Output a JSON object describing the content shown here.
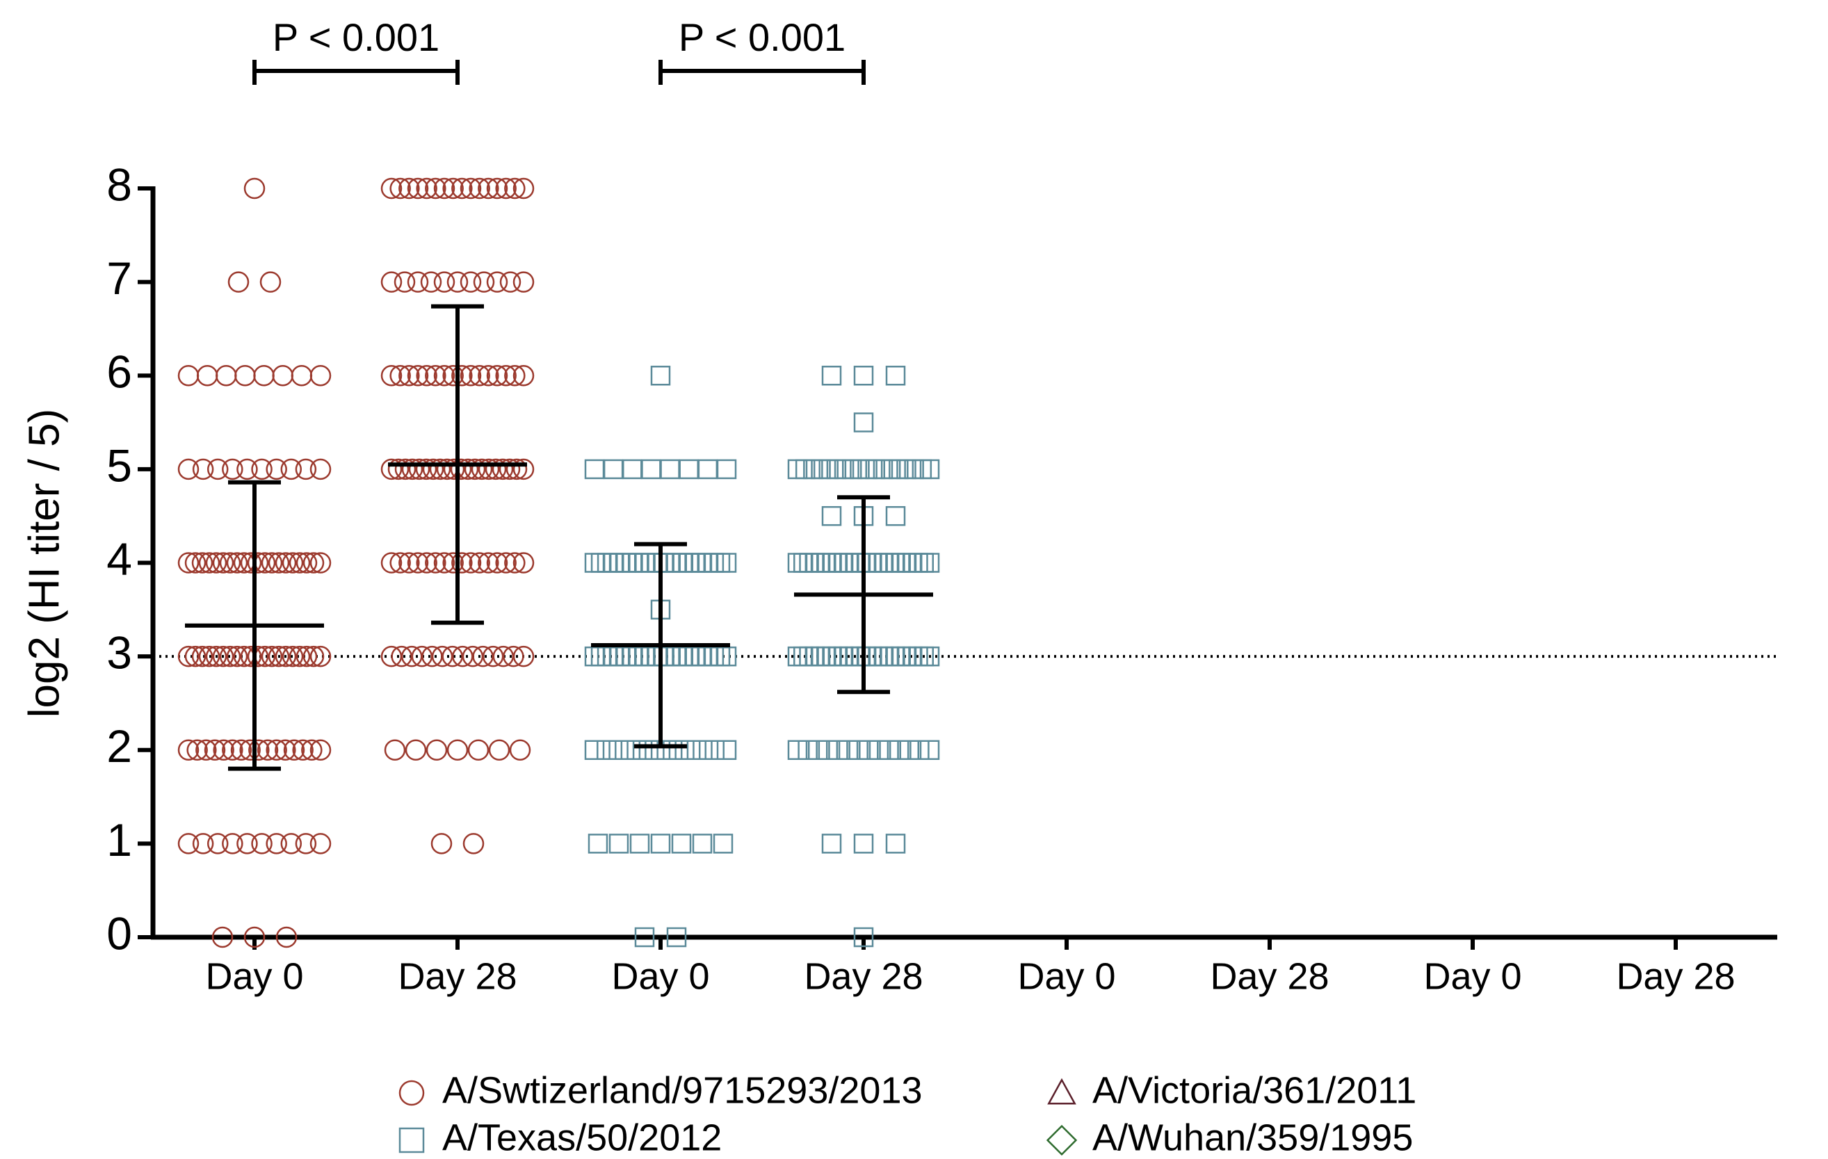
{
  "chart_data": {
    "type": "dot-plot",
    "y_label": "log2 (HI titer / 5)",
    "categories": [
      "Day 0",
      "Day 28",
      "Day 0",
      "Day 28",
      "Day 0",
      "Day 28",
      "Day 0",
      "Day 28"
    ],
    "ylim": [
      0,
      8
    ],
    "yticks": [
      0,
      1,
      2,
      3,
      4,
      5,
      6,
      7,
      8
    ],
    "reference_line": 3,
    "annotations": [
      "P < 0.001",
      "P < 0.001"
    ],
    "series": [
      {
        "name": "A/Swtizerland/9715293/2013",
        "color": "#9c3a2e",
        "marker": "circle",
        "groups": [
          {
            "values": [
              8,
              7,
              7,
              6,
              6,
              6,
              6,
              6,
              6,
              6,
              6,
              5,
              5,
              5,
              5,
              5,
              5,
              5,
              5,
              5,
              5,
              4,
              4,
              4,
              4,
              4,
              4,
              4,
              4,
              4,
              4,
              4,
              4,
              4,
              4,
              4,
              4,
              4,
              4,
              4,
              4,
              3,
              3,
              3,
              3,
              3,
              3,
              3,
              3,
              3,
              3,
              3,
              3,
              3,
              3,
              3,
              3,
              3,
              3,
              3,
              3,
              2,
              2,
              2,
              2,
              2,
              2,
              2,
              2,
              2,
              2,
              2,
              2,
              2,
              2,
              2,
              2,
              1,
              1,
              1,
              1,
              1,
              1,
              1,
              1,
              1,
              1,
              0,
              0,
              0
            ],
            "mean": 3.33,
            "sd": 1.53
          },
          {
            "values": [
              8,
              8,
              8,
              8,
              8,
              8,
              8,
              8,
              8,
              8,
              8,
              8,
              8,
              8,
              8,
              8,
              7,
              7,
              7,
              7,
              7,
              7,
              7,
              7,
              7,
              7,
              7,
              6,
              6,
              6,
              6,
              6,
              6,
              6,
              6,
              6,
              6,
              6,
              6,
              6,
              6,
              6,
              6,
              5,
              5,
              5,
              5,
              5,
              5,
              5,
              5,
              5,
              5,
              5,
              5,
              5,
              5,
              5,
              5,
              5,
              5,
              5,
              5,
              4,
              4,
              4,
              4,
              4,
              4,
              4,
              4,
              4,
              4,
              4,
              4,
              4,
              4,
              4,
              4,
              3,
              3,
              3,
              3,
              3,
              3,
              3,
              3,
              3,
              3,
              3,
              3,
              3,
              3,
              2,
              2,
              2,
              2,
              2,
              2,
              2,
              1,
              1
            ],
            "mean": 5.05,
            "sd": 1.69
          }
        ]
      },
      {
        "name": "A/Texas/50/2012",
        "color": "#5b8a99",
        "marker": "square",
        "groups": [
          {
            "values": [
              6,
              5,
              5,
              5,
              5,
              5,
              5,
              5,
              5,
              4,
              4,
              4,
              4,
              4,
              4,
              4,
              4,
              4,
              4,
              4,
              4,
              4,
              4,
              4,
              4,
              4,
              4,
              4,
              4,
              4,
              4,
              3.5,
              3,
              3,
              3,
              3,
              3,
              3,
              3,
              3,
              3,
              3,
              3,
              3,
              3,
              3,
              3,
              3,
              3,
              3,
              3,
              3,
              3,
              3,
              2,
              2,
              2,
              2,
              2,
              2,
              2,
              2,
              2,
              2,
              2,
              2,
              1,
              1,
              1,
              1,
              1,
              1,
              1,
              0,
              0
            ],
            "mean": 3.12,
            "sd": 1.08
          },
          {
            "values": [
              6,
              6,
              6,
              5.5,
              5,
              5,
              5,
              5,
              5,
              5,
              5,
              5,
              5,
              5,
              5,
              5,
              5,
              5,
              5,
              5,
              5,
              5,
              4.5,
              4.5,
              4.5,
              4,
              4,
              4,
              4,
              4,
              4,
              4,
              4,
              4,
              4,
              4,
              4,
              4,
              4,
              4,
              4,
              4,
              4,
              4,
              4,
              4,
              4,
              4,
              4,
              3,
              3,
              3,
              3,
              3,
              3,
              3,
              3,
              3,
              3,
              3,
              3,
              3,
              3,
              3,
              3,
              3,
              3,
              3,
              3,
              3,
              3,
              3,
              3,
              2,
              2,
              2,
              2,
              2,
              2,
              2,
              2,
              2,
              2,
              2,
              2,
              2,
              2,
              1,
              1,
              1,
              0
            ],
            "mean": 3.66,
            "sd": 1.04
          }
        ]
      },
      {
        "name": "A/Victoria/361/2011",
        "color": "#5a1f2a",
        "marker": "triangle",
        "groups": []
      },
      {
        "name": "A/Wuhan/359/1995",
        "color": "#2e6b2e",
        "marker": "diamond",
        "groups": []
      }
    ]
  }
}
